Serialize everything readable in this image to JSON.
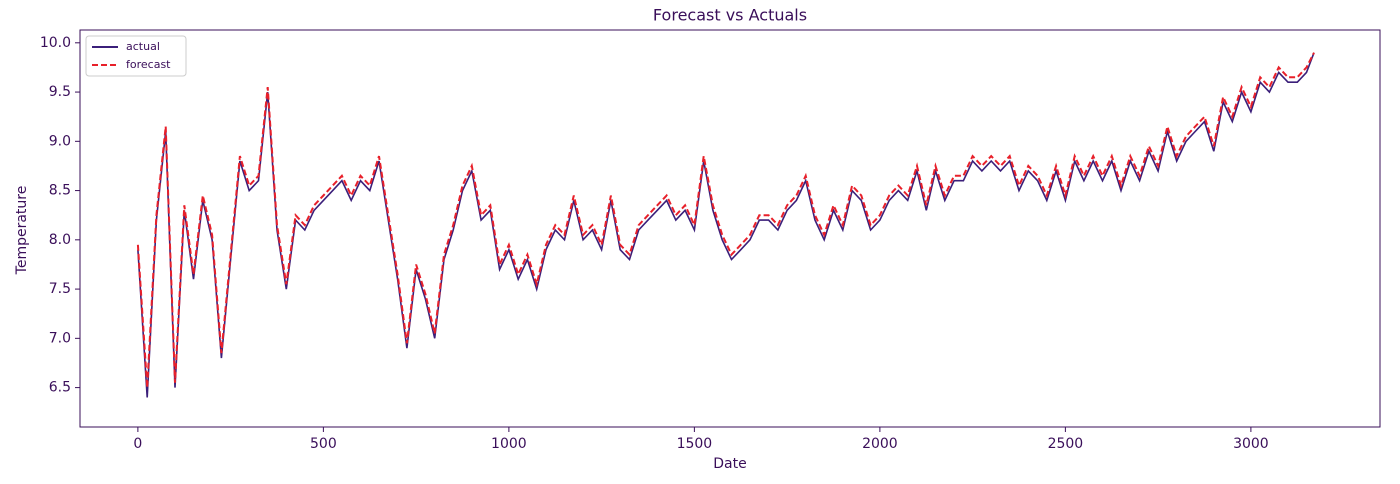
{
  "chart_data": {
    "type": "line",
    "title": "Forecast vs Actuals",
    "xlabel": "Date",
    "ylabel": "Temperature",
    "x": [
      0,
      25,
      50,
      75,
      100,
      125,
      150,
      175,
      200,
      225,
      250,
      275,
      300,
      325,
      350,
      375,
      400,
      425,
      450,
      475,
      500,
      525,
      550,
      575,
      600,
      625,
      650,
      675,
      700,
      725,
      750,
      775,
      800,
      825,
      850,
      875,
      900,
      925,
      950,
      975,
      1000,
      1025,
      1050,
      1075,
      1100,
      1125,
      1150,
      1175,
      1200,
      1225,
      1250,
      1275,
      1300,
      1325,
      1350,
      1375,
      1400,
      1425,
      1450,
      1475,
      1500,
      1525,
      1550,
      1575,
      1600,
      1625,
      1650,
      1675,
      1700,
      1725,
      1750,
      1775,
      1800,
      1825,
      1850,
      1875,
      1900,
      1925,
      1950,
      1975,
      2000,
      2025,
      2050,
      2075,
      2100,
      2125,
      2150,
      2175,
      2200,
      2225,
      2250,
      2275,
      2300,
      2325,
      2350,
      2375,
      2400,
      2425,
      2450,
      2475,
      2500,
      2525,
      2550,
      2575,
      2600,
      2625,
      2650,
      2675,
      2700,
      2725,
      2750,
      2775,
      2800,
      2825,
      2850,
      2875,
      2900,
      2925,
      2950,
      2975,
      3000,
      3025,
      3050,
      3075,
      3100,
      3125,
      3150,
      3170
    ],
    "series": [
      {
        "name": "actual",
        "color": "#3b1f7a",
        "dash": false,
        "values": [
          7.9,
          6.4,
          8.2,
          9.1,
          6.5,
          8.3,
          7.6,
          8.4,
          8.0,
          6.8,
          7.8,
          8.8,
          8.5,
          8.6,
          9.5,
          8.1,
          7.5,
          8.2,
          8.1,
          8.3,
          8.4,
          8.5,
          8.6,
          8.4,
          8.6,
          8.5,
          8.8,
          8.2,
          7.6,
          6.9,
          7.7,
          7.4,
          7.0,
          7.8,
          8.1,
          8.5,
          8.7,
          8.2,
          8.3,
          7.7,
          7.9,
          7.6,
          7.8,
          7.5,
          7.9,
          8.1,
          8.0,
          8.4,
          8.0,
          8.1,
          7.9,
          8.4,
          7.9,
          7.8,
          8.1,
          8.2,
          8.3,
          8.4,
          8.2,
          8.3,
          8.1,
          8.8,
          8.3,
          8.0,
          7.8,
          7.9,
          8.0,
          8.2,
          8.2,
          8.1,
          8.3,
          8.4,
          8.6,
          8.2,
          8.0,
          8.3,
          8.1,
          8.5,
          8.4,
          8.1,
          8.2,
          8.4,
          8.5,
          8.4,
          8.7,
          8.3,
          8.7,
          8.4,
          8.6,
          8.6,
          8.8,
          8.7,
          8.8,
          8.7,
          8.8,
          8.5,
          8.7,
          8.6,
          8.4,
          8.7,
          8.4,
          8.8,
          8.6,
          8.8,
          8.6,
          8.8,
          8.5,
          8.8,
          8.6,
          8.9,
          8.7,
          9.1,
          8.8,
          9.0,
          9.1,
          9.2,
          8.9,
          9.4,
          9.2,
          9.5,
          9.3,
          9.6,
          9.5,
          9.7,
          9.6,
          9.6,
          9.7,
          9.9
        ]
      },
      {
        "name": "forecast",
        "color": "#e8202a",
        "dash": true,
        "values": [
          7.95,
          6.5,
          8.25,
          9.15,
          6.55,
          8.35,
          7.65,
          8.45,
          8.05,
          6.85,
          7.85,
          8.85,
          8.55,
          8.65,
          9.55,
          8.15,
          7.55,
          8.25,
          8.15,
          8.35,
          8.45,
          8.55,
          8.65,
          8.45,
          8.65,
          8.55,
          8.85,
          8.25,
          7.65,
          6.95,
          7.75,
          7.45,
          7.05,
          7.85,
          8.15,
          8.55,
          8.75,
          8.25,
          8.35,
          7.75,
          7.95,
          7.65,
          7.85,
          7.55,
          7.95,
          8.15,
          8.05,
          8.45,
          8.05,
          8.15,
          7.95,
          8.45,
          7.95,
          7.85,
          8.15,
          8.25,
          8.35,
          8.45,
          8.25,
          8.35,
          8.15,
          8.85,
          8.35,
          8.05,
          7.85,
          7.95,
          8.05,
          8.25,
          8.25,
          8.15,
          8.35,
          8.45,
          8.65,
          8.25,
          8.05,
          8.35,
          8.15,
          8.55,
          8.45,
          8.15,
          8.25,
          8.45,
          8.55,
          8.45,
          8.75,
          8.35,
          8.75,
          8.45,
          8.65,
          8.65,
          8.85,
          8.75,
          8.85,
          8.75,
          8.85,
          8.55,
          8.75,
          8.65,
          8.45,
          8.75,
          8.45,
          8.85,
          8.65,
          8.85,
          8.65,
          8.85,
          8.55,
          8.85,
          8.65,
          8.95,
          8.75,
          9.15,
          8.85,
          9.05,
          9.15,
          9.25,
          8.95,
          9.45,
          9.25,
          9.55,
          9.35,
          9.65,
          9.55,
          9.75,
          9.65,
          9.65,
          9.75,
          9.9
        ]
      }
    ],
    "xlim": [
      -156,
      3348
    ],
    "xticks": [
      0,
      500,
      1000,
      1500,
      2000,
      2500,
      3000
    ],
    "ylim": [
      6.1,
      10.13
    ],
    "yticks": [
      6.5,
      {
        "value": 7,
        "label": "7.0"
      },
      7.5,
      {
        "value": 8,
        "label": "8.0"
      },
      8.5,
      {
        "value": 9,
        "label": "9.0"
      },
      9.5,
      {
        "value": 10,
        "label": "10.0"
      }
    ],
    "legend": "upper left"
  }
}
